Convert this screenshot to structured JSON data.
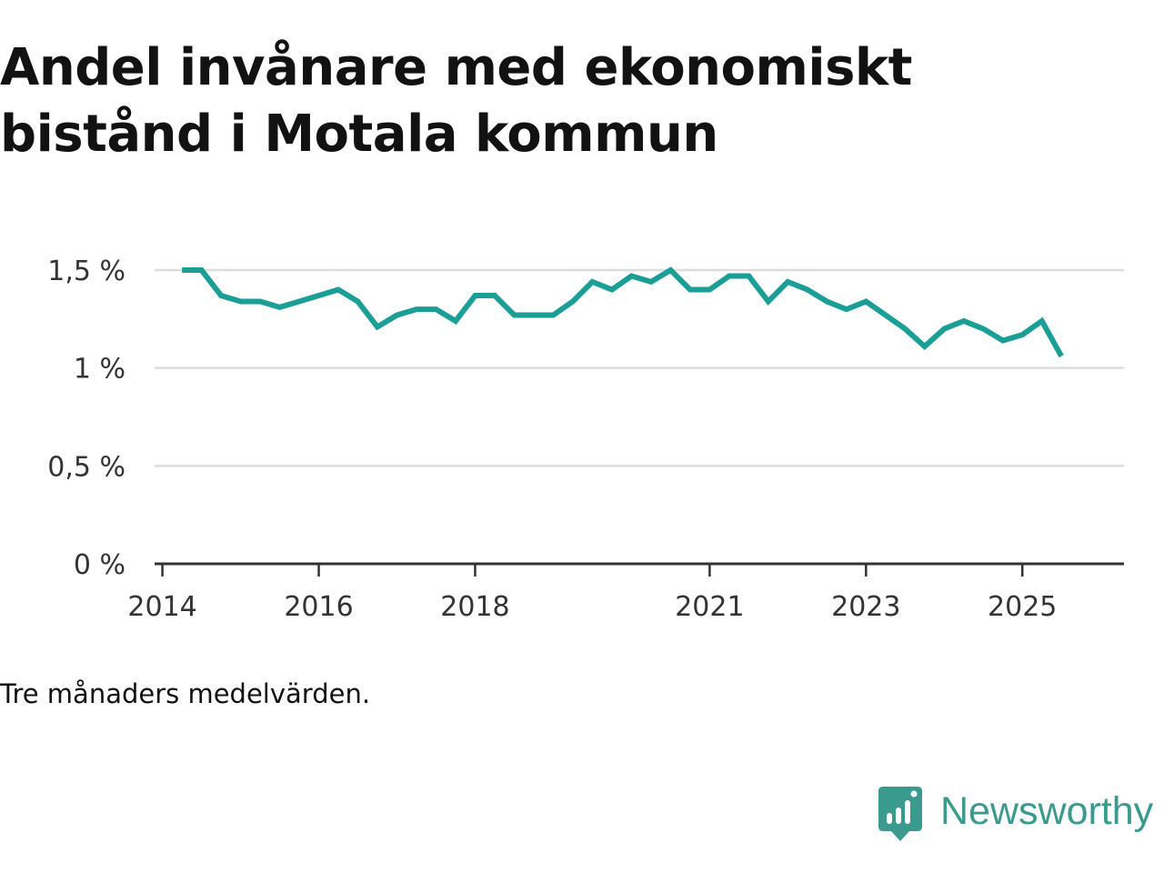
{
  "title": "Andel invånare med ekonomiskt bistånd i Motala kommun",
  "note": "Tre månaders medelvärden.",
  "brand": {
    "name": "Newsworthy",
    "icon": "newsworthy-logo-icon",
    "color": "#3a9a8e"
  },
  "colors": {
    "line": "#1a9e96",
    "grid": "#dddddd",
    "axis": "#333333"
  },
  "chart_data": {
    "type": "line",
    "title": "Andel invånare med ekonomiskt bistånd i Motala kommun",
    "xlabel": "",
    "ylabel": "",
    "ylim": [
      0,
      1.5
    ],
    "xlim": [
      2013.9,
      2026.3
    ],
    "yticks": [
      {
        "value": 0,
        "label": "0 %"
      },
      {
        "value": 0.5,
        "label": "0,5 %"
      },
      {
        "value": 1,
        "label": "1 %"
      },
      {
        "value": 1.5,
        "label": "1,5 %"
      }
    ],
    "xticks": [
      {
        "value": 2014,
        "label": "2014"
      },
      {
        "value": 2016,
        "label": "2016"
      },
      {
        "value": 2018,
        "label": "2018"
      },
      {
        "value": 2021,
        "label": "2021"
      },
      {
        "value": 2023,
        "label": "2023"
      },
      {
        "value": 2025,
        "label": "2025"
      }
    ],
    "grid": true,
    "series": [
      {
        "name": "Andel invånare med ekonomiskt bistånd",
        "x": [
          2014.25,
          2014.5,
          2014.75,
          2015.0,
          2015.25,
          2015.5,
          2015.75,
          2016.0,
          2016.25,
          2016.5,
          2016.75,
          2017.0,
          2017.25,
          2017.5,
          2017.75,
          2018.0,
          2018.25,
          2018.5,
          2018.75,
          2019.0,
          2019.25,
          2019.5,
          2019.75,
          2020.0,
          2020.25,
          2020.5,
          2020.75,
          2021.0,
          2021.25,
          2021.5,
          2021.75,
          2022.0,
          2022.25,
          2022.5,
          2022.75,
          2023.0,
          2023.25,
          2023.5,
          2023.75,
          2024.0,
          2024.25,
          2024.5,
          2024.75,
          2025.0,
          2025.25,
          2025.5
        ],
        "values": [
          1.5,
          1.5,
          1.37,
          1.34,
          1.34,
          1.31,
          1.34,
          1.37,
          1.4,
          1.34,
          1.21,
          1.27,
          1.3,
          1.3,
          1.24,
          1.37,
          1.37,
          1.27,
          1.27,
          1.27,
          1.34,
          1.44,
          1.4,
          1.47,
          1.44,
          1.5,
          1.4,
          1.4,
          1.47,
          1.47,
          1.34,
          1.44,
          1.4,
          1.34,
          1.3,
          1.34,
          1.27,
          1.2,
          1.11,
          1.2,
          1.24,
          1.2,
          1.14,
          1.17,
          1.24,
          1.06
        ]
      }
    ]
  }
}
